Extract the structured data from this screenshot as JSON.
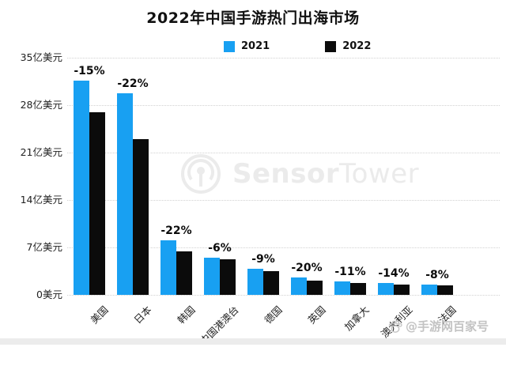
{
  "title": "2022年中国手游热门出海市场",
  "legend": {
    "items": [
      {
        "label": "2021",
        "color": "#18a0f2"
      },
      {
        "label": "2022",
        "color": "#0b0b0b"
      }
    ]
  },
  "y_axis": {
    "tick_labels": [
      "35亿美元",
      "28亿美元",
      "21亿美元",
      "14亿美元",
      "7亿美元",
      "0美元"
    ],
    "tick_values": [
      35,
      28,
      21,
      14,
      7,
      0
    ]
  },
  "watermarks": {
    "center_brand_bold": "Sensor",
    "center_brand_light": "Tower",
    "corner_text": "@手游网百家号"
  },
  "chart_data": {
    "type": "bar",
    "title": "2022年中国手游热门出海市场",
    "unit": "亿美元",
    "ylim": [
      0,
      35
    ],
    "grid": "horizontal dotted",
    "legend_position": "top center",
    "categories": [
      "美国",
      "日本",
      "韩国",
      "中国港澳台",
      "德国",
      "英国",
      "加拿大",
      "澳大利亚",
      "法国"
    ],
    "series": [
      {
        "name": "2021",
        "color": "#18a0f2",
        "values": [
          31.6,
          29.7,
          8.1,
          5.5,
          3.9,
          2.6,
          2.0,
          1.8,
          1.5
        ]
      },
      {
        "name": "2022",
        "color": "#0b0b0b",
        "values": [
          26.9,
          23.0,
          6.4,
          5.2,
          3.55,
          2.1,
          1.78,
          1.55,
          1.38
        ]
      }
    ],
    "change_labels": [
      "-15%",
      "-22%",
      "-22%",
      "-6%",
      "-9%",
      "-20%",
      "-11%",
      "-14%",
      "-8%"
    ]
  }
}
